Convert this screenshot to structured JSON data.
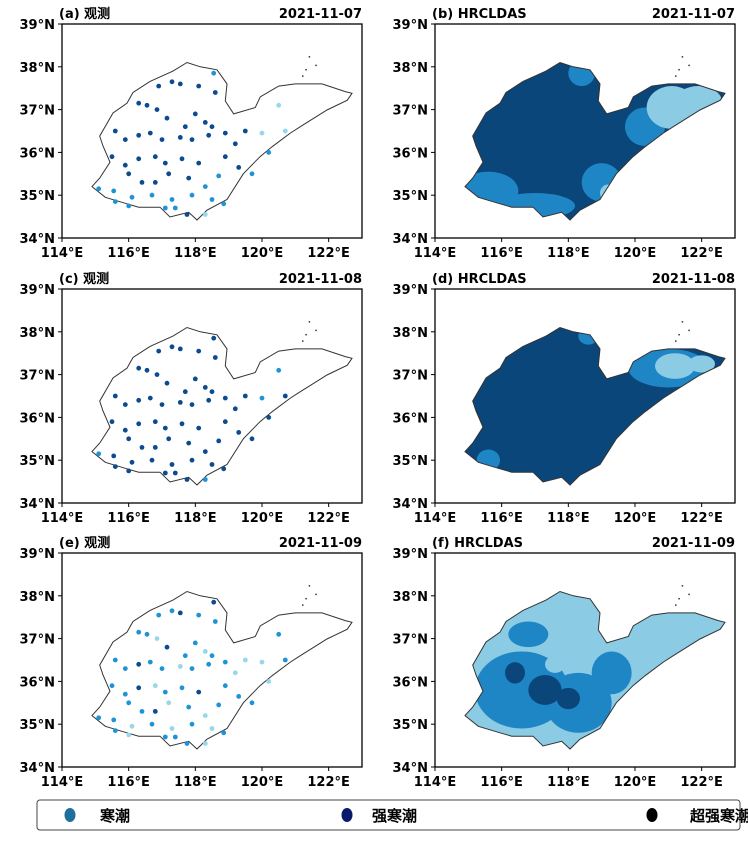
{
  "chart_data": {
    "type": "map",
    "x_ticks": [
      "114°E",
      "116°E",
      "118°E",
      "120°E",
      "122°E"
    ],
    "x_tick_values": [
      114,
      116,
      118,
      120,
      122
    ],
    "y_ticks": [
      "39°N",
      "38°N",
      "37°N",
      "36°N",
      "35°N",
      "34°N"
    ],
    "y_tick_values": [
      39,
      38,
      37,
      36,
      35,
      34
    ],
    "lon_range": [
      114,
      123
    ],
    "lat_range": [
      34,
      39
    ],
    "colors": {
      "light": "#9ad6ea",
      "medium": "#1e94d6",
      "dark": "#0c4b8e",
      "field_light": "#8ccbe4",
      "field_medium": "#1f86c6",
      "field_dark": "#0b467a",
      "outline": "#333333"
    },
    "outline": [
      [
        114.9,
        35.2
      ],
      [
        115.3,
        34.95
      ],
      [
        115.95,
        34.8
      ],
      [
        116.3,
        34.72
      ],
      [
        116.94,
        34.72
      ],
      [
        117.24,
        34.49
      ],
      [
        117.8,
        34.6
      ],
      [
        118.05,
        34.42
      ],
      [
        118.35,
        34.65
      ],
      [
        118.95,
        34.9
      ],
      [
        119.44,
        35.5
      ],
      [
        119.94,
        35.9
      ],
      [
        120.3,
        36.13
      ],
      [
        120.85,
        36.45
      ],
      [
        121.15,
        36.6
      ],
      [
        121.95,
        36.99
      ],
      [
        122.56,
        37.22
      ],
      [
        122.7,
        37.38
      ],
      [
        122.5,
        37.42
      ],
      [
        121.8,
        37.6
      ],
      [
        121.0,
        37.6
      ],
      [
        120.5,
        37.55
      ],
      [
        119.95,
        37.3
      ],
      [
        119.8,
        37.05
      ],
      [
        119.15,
        36.9
      ],
      [
        118.9,
        37.2
      ],
      [
        118.95,
        37.6
      ],
      [
        118.65,
        37.93
      ],
      [
        118.15,
        38.0
      ],
      [
        117.75,
        38.1
      ],
      [
        117.33,
        37.9
      ],
      [
        116.64,
        37.66
      ],
      [
        116.13,
        37.4
      ],
      [
        115.95,
        37.15
      ],
      [
        115.53,
        36.92
      ],
      [
        115.13,
        36.38
      ],
      [
        115.23,
        36.15
      ],
      [
        115.44,
        35.77
      ],
      [
        115.13,
        35.4
      ]
    ],
    "stations": [
      [
        116.9,
        37.55,
        "221"
      ],
      [
        117.3,
        37.65,
        "221"
      ],
      [
        117.55,
        37.6,
        "222"
      ],
      [
        118.1,
        37.55,
        "221"
      ],
      [
        118.55,
        37.85,
        "122"
      ],
      [
        118.6,
        37.4,
        "221"
      ],
      [
        116.3,
        37.15,
        "221"
      ],
      [
        116.55,
        37.1,
        "221"
      ],
      [
        116.85,
        37.0,
        "220"
      ],
      [
        117.15,
        36.8,
        "222"
      ],
      [
        117.7,
        36.6,
        "221"
      ],
      [
        118.0,
        36.9,
        "221"
      ],
      [
        118.3,
        36.7,
        "220"
      ],
      [
        118.5,
        36.6,
        "221"
      ],
      [
        115.6,
        36.5,
        "221"
      ],
      [
        115.9,
        36.3,
        "221"
      ],
      [
        116.3,
        36.4,
        "222"
      ],
      [
        116.65,
        36.45,
        "221"
      ],
      [
        117.0,
        36.3,
        "221"
      ],
      [
        117.55,
        36.35,
        "220"
      ],
      [
        117.9,
        36.3,
        "221"
      ],
      [
        118.4,
        36.4,
        "221"
      ],
      [
        118.9,
        36.45,
        "221"
      ],
      [
        119.2,
        36.2,
        "220"
      ],
      [
        119.5,
        36.5,
        "220"
      ],
      [
        120.0,
        36.45,
        "010"
      ],
      [
        120.5,
        37.1,
        "011"
      ],
      [
        120.7,
        36.5,
        "021"
      ],
      [
        120.2,
        36.0,
        "120"
      ],
      [
        115.5,
        35.9,
        "221"
      ],
      [
        115.9,
        35.7,
        "221"
      ],
      [
        116.3,
        35.85,
        "222"
      ],
      [
        116.8,
        35.9,
        "220"
      ],
      [
        117.1,
        35.75,
        "221"
      ],
      [
        117.6,
        35.85,
        "221"
      ],
      [
        118.1,
        35.75,
        "222"
      ],
      [
        118.9,
        35.9,
        "221"
      ],
      [
        119.3,
        35.65,
        "221"
      ],
      [
        116.0,
        35.5,
        "221"
      ],
      [
        116.4,
        35.3,
        "221"
      ],
      [
        116.8,
        35.3,
        "222"
      ],
      [
        117.2,
        35.5,
        "220"
      ],
      [
        117.8,
        35.4,
        "221"
      ],
      [
        118.3,
        35.2,
        "120"
      ],
      [
        118.7,
        35.45,
        "121"
      ],
      [
        119.7,
        35.5,
        "121"
      ],
      [
        115.1,
        35.15,
        "111"
      ],
      [
        115.55,
        35.1,
        "121"
      ],
      [
        116.1,
        34.95,
        "120"
      ],
      [
        116.7,
        35.0,
        "121"
      ],
      [
        117.3,
        34.9,
        "120"
      ],
      [
        117.9,
        35.0,
        "121"
      ],
      [
        118.5,
        34.9,
        "120"
      ],
      [
        115.6,
        34.85,
        "121"
      ],
      [
        116.0,
        34.75,
        "120"
      ],
      [
        117.1,
        34.7,
        "121"
      ],
      [
        117.4,
        34.7,
        "121"
      ],
      [
        117.75,
        34.55,
        "221"
      ],
      [
        118.3,
        34.55,
        "010"
      ],
      [
        118.85,
        34.8,
        "121"
      ]
    ],
    "panels": [
      {
        "id": "a",
        "label": "(a) 观测",
        "date": "2021-11-07",
        "kind": "obs",
        "col": 0
      },
      {
        "id": "b",
        "label": "(b) HRCLDAS",
        "date": "2021-11-07",
        "kind": "field",
        "base": "field_dark",
        "blobs": [
          [
            "field_medium",
            115.6,
            35.1,
            0.9,
            0.45
          ],
          [
            "field_medium",
            117.0,
            34.75,
            1.2,
            0.3
          ],
          [
            "field_medium",
            119.0,
            35.3,
            0.6,
            0.45
          ],
          [
            "field_medium",
            120.3,
            36.6,
            0.6,
            0.45
          ],
          [
            "field_medium",
            118.4,
            37.85,
            0.4,
            0.3
          ],
          [
            "field_light",
            121.1,
            37.05,
            0.75,
            0.5
          ],
          [
            "field_light",
            121.9,
            37.2,
            0.7,
            0.35
          ],
          [
            "field_light",
            119.2,
            35.05,
            0.25,
            0.2
          ],
          [
            "field_dark",
            119.95,
            37.25,
            0.15,
            0.1
          ]
        ]
      },
      {
        "id": "c",
        "label": "(c) 观测",
        "date": "2021-11-08",
        "kind": "obs",
        "col": 1
      },
      {
        "id": "d",
        "label": "(d) HRCLDAS",
        "date": "2021-11-08",
        "kind": "field",
        "base": "field_dark",
        "blobs": [
          [
            "field_medium",
            121.0,
            37.15,
            1.2,
            0.45
          ],
          [
            "field_medium",
            115.6,
            35.0,
            0.35,
            0.25
          ],
          [
            "field_light",
            121.2,
            37.2,
            0.6,
            0.3
          ],
          [
            "field_light",
            122.0,
            37.25,
            0.4,
            0.2
          ],
          [
            "field_medium",
            118.6,
            37.9,
            0.3,
            0.2
          ]
        ]
      },
      {
        "id": "e",
        "label": "(e) 观测",
        "date": "2021-11-09",
        "kind": "obs",
        "col": 2
      },
      {
        "id": "f",
        "label": "(f) HRCLDAS",
        "date": "2021-11-09",
        "kind": "field",
        "base": "field_light",
        "blobs": [
          [
            "field_medium",
            116.6,
            35.8,
            1.4,
            0.9
          ],
          [
            "field_medium",
            118.3,
            35.5,
            1.0,
            0.7
          ],
          [
            "field_medium",
            119.3,
            36.2,
            0.6,
            0.5
          ],
          [
            "field_dark",
            117.3,
            35.8,
            0.5,
            0.35
          ],
          [
            "field_dark",
            116.4,
            36.2,
            0.3,
            0.25
          ],
          [
            "field_dark",
            118.0,
            35.6,
            0.35,
            0.25
          ],
          [
            "field_medium",
            116.8,
            37.1,
            0.6,
            0.3
          ],
          [
            "field_light",
            117.6,
            36.4,
            0.3,
            0.2
          ],
          [
            "field_light",
            118.9,
            36.9,
            0.3,
            0.25
          ]
        ]
      }
    ]
  },
  "legend": [
    {
      "label": "寒潮",
      "color": "#1f6e9e"
    },
    {
      "label": "强寒潮",
      "color": "#0a1a6a"
    },
    {
      "label": "超强寒潮",
      "color": "#000000"
    }
  ]
}
